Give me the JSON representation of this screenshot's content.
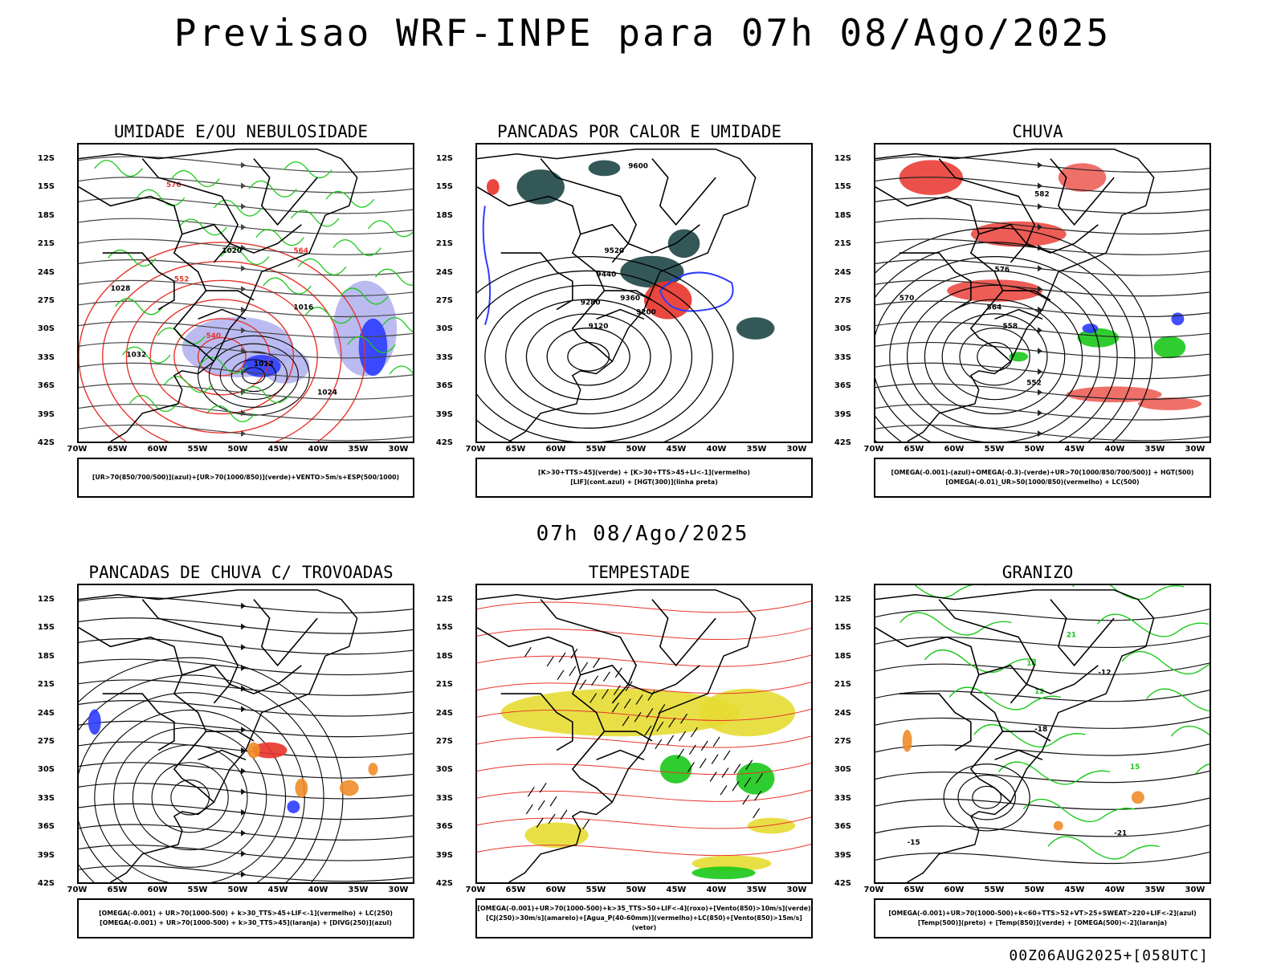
{
  "main_title": "Previsao WRF-INPE  para 07h 08/Ago/2025",
  "mid_time": "07h 08/Ago/2025",
  "footer": "00Z06AUG2025+[058UTC]",
  "axes": {
    "lat_labels": [
      "12S",
      "15S",
      "18S",
      "21S",
      "24S",
      "27S",
      "30S",
      "33S",
      "36S",
      "39S",
      "42S"
    ],
    "lon_labels": [
      "70W",
      "65W",
      "60W",
      "55W",
      "50W",
      "45W",
      "40W",
      "35W",
      "30W"
    ]
  },
  "colors": {
    "red": "#e8332a",
    "green": "#19c819",
    "blue": "#2c3cff",
    "lavender": "#b4b4f0",
    "dark_teal": "#1e4646",
    "yellow": "#e6dc32",
    "orange": "#f08c28"
  },
  "panels": [
    {
      "id": "umidade",
      "title": "UMIDADE E/OU NEBULOSIDADE",
      "legend": [
        "[UR>70(850/700/500)](azul)+[UR>70(1000/850)](verde)+VENTO>5m/s+ESP(500/1000)"
      ],
      "contour_labels": [
        "1012",
        "1016",
        "1020",
        "1024",
        "1028",
        "1032",
        "540",
        "552",
        "564",
        "576"
      ]
    },
    {
      "id": "pancadas_calor",
      "title": "PANCADAS POR CALOR E UMIDADE",
      "legend": [
        "[K>30+TTS>45](verde) + [K>30+TTS>45+LI<-1](vermelho)",
        "[LIF](cont.azul) + [HGT(300)](linha preta)"
      ],
      "contour_labels": [
        "9600",
        "9520",
        "9440",
        "9360",
        "9280",
        "9200",
        "9120"
      ]
    },
    {
      "id": "chuva",
      "title": "CHUVA",
      "legend": [
        "[OMEGA(-0.001)-(azul)+OMEGA(-0.3)-(verde)+UR>70(1000/850/700/500)] + HGT(500)",
        "[OMEGA(-0.01)_UR>50(1000/850)(vermelho) + LC(500)"
      ],
      "contour_labels": [
        "582",
        "576",
        "570",
        "564",
        "558",
        "552"
      ]
    },
    {
      "id": "trovoadas",
      "title": "PANCADAS DE CHUVA C/ TROVOADAS",
      "legend": [
        "[OMEGA(-0.001) + UR>70(1000-500) + k>30_TTS>45+LIF<-1](vermelho) + LC(250)",
        "[OMEGA(-0.001) + UR>70(1000-500) + k>30_TTS>45](laranja) + [DIVG(250)](azul)"
      ],
      "contour_labels": []
    },
    {
      "id": "tempestade",
      "title": "TEMPESTADE",
      "legend": [
        "[OMEGA(-0.001)+UR>70(1000-500)+k>35_TTS>50+LIF<-4](roxo)+[Vento(850)>10m/s](verde)",
        "[CJ(250)>30m/s](amarelo)+[Agua_P(40-60mm)](vermelho)+LC(850)+[Vento(850)>15m/s](vetor)"
      ],
      "contour_labels": []
    },
    {
      "id": "granizo",
      "title": "GRANIZO",
      "legend": [
        "[OMEGA(-0.001)+UR>70(1000-500)+k<60+TTS>52+VT>25+SWEAT>220+LIF<-2](azul)",
        "[Temp(500)](preto) + [Temp(850)](verde) + [OMEGA(500)<-2](laranja)"
      ],
      "contour_labels": [
        "-12",
        "-15",
        "-18",
        "-21",
        "12",
        "15",
        "18",
        "21"
      ]
    }
  ]
}
